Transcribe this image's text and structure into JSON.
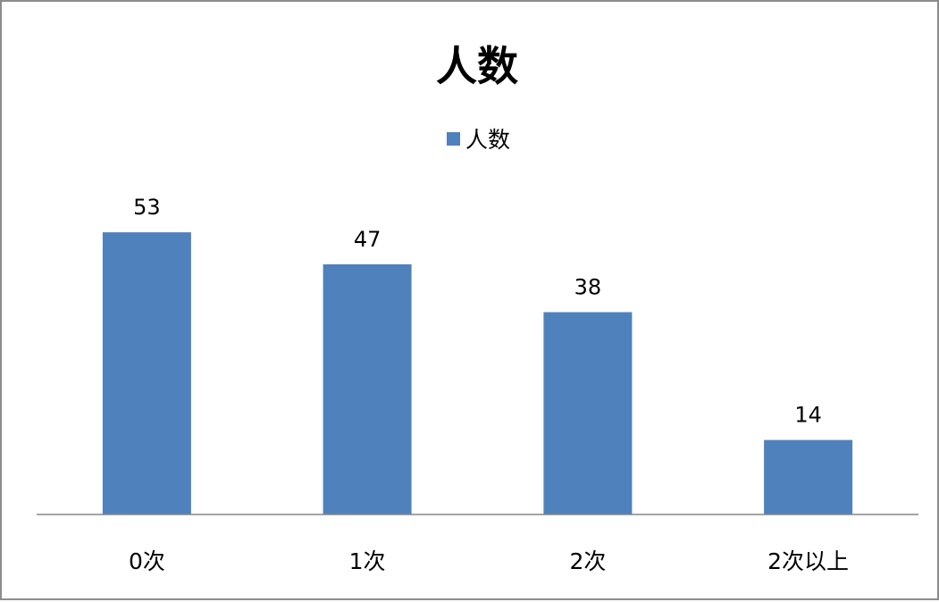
{
  "chart_data": {
    "type": "bar",
    "title": "人数",
    "categories": [
      "0次",
      "1次",
      "2次",
      "2次以上"
    ],
    "series": [
      {
        "name": "人数",
        "values": [
          53,
          47,
          38,
          14
        ],
        "color": "#4f81bd"
      }
    ],
    "xlabel": "",
    "ylabel": "",
    "ylim": [
      0,
      60
    ],
    "grid": false,
    "legend_position": "top",
    "data_labels": true,
    "axis_color": "#868686"
  }
}
